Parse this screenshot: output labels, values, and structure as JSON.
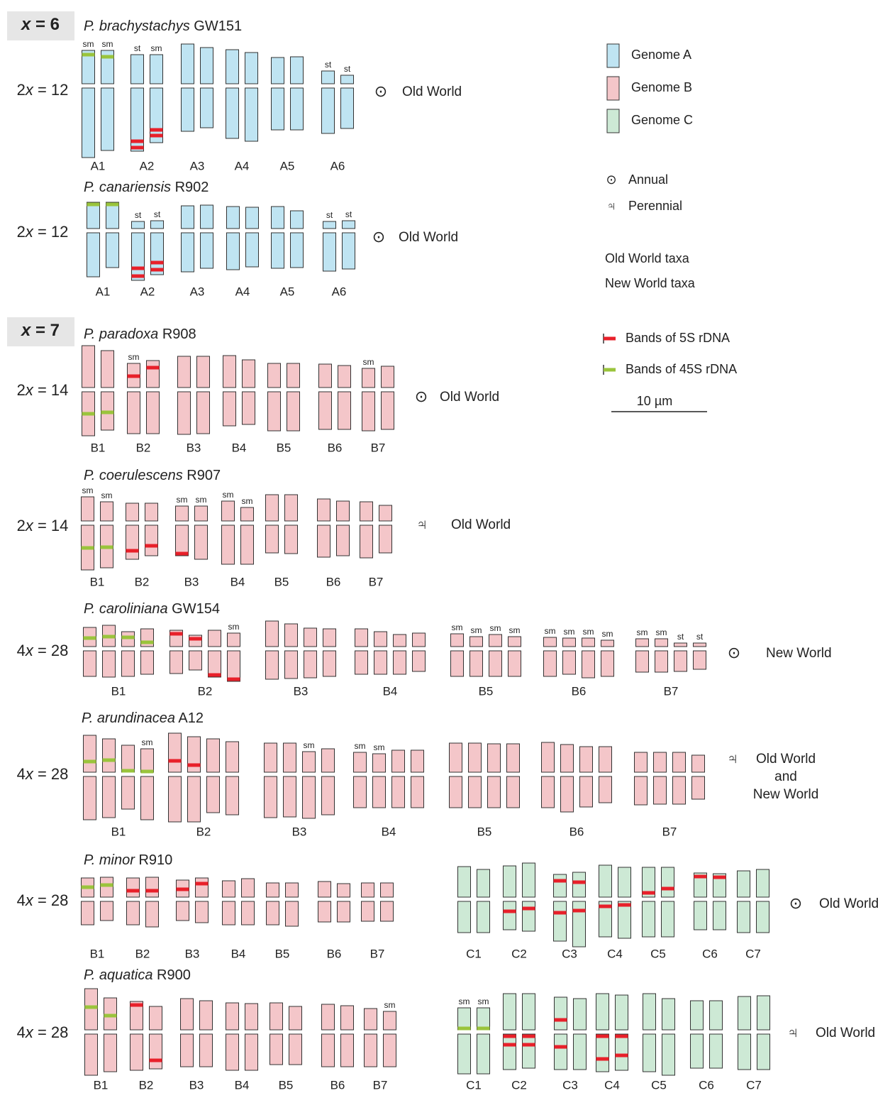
{
  "sections": [
    {
      "var": "x",
      "eq": " = 6"
    },
    {
      "var": "x",
      "eq": " = 7"
    }
  ],
  "panels": [
    {
      "species": "P. brachystachys",
      "code": " GW151",
      "ploidy": {
        "coef": "2",
        "var": "x",
        "eq": " = 12"
      },
      "life": "⊙",
      "world": [
        {
          "text": "Old World",
          "color": "#1a9ad6"
        }
      ],
      "groups": [
        {
          "label": "A1",
          "types": [
            "sm",
            "sm"
          ]
        },
        {
          "label": "A2",
          "types": [
            "st",
            "sm"
          ]
        },
        {
          "label": "A3"
        },
        {
          "label": "A4"
        },
        {
          "label": "A5"
        },
        {
          "label": "A6",
          "types": [
            "st",
            "st"
          ]
        }
      ]
    },
    {
      "species": "P. canariensis",
      "code": " R902",
      "ploidy": {
        "coef": "2",
        "var": "x",
        "eq": " = 12"
      },
      "life": "⊙",
      "world": [
        {
          "text": "Old World",
          "color": "#1a9ad6"
        }
      ],
      "groups": [
        {
          "label": "A1"
        },
        {
          "label": "A2",
          "types": [
            "st",
            "st"
          ]
        },
        {
          "label": "A3"
        },
        {
          "label": "A4"
        },
        {
          "label": "A5"
        },
        {
          "label": "A6",
          "types": [
            "st",
            "st"
          ]
        }
      ]
    },
    {
      "species": "P. paradoxa",
      "code": " R908",
      "ploidy": {
        "coef": "2",
        "var": "x",
        "eq": " = 14"
      },
      "life": "⊙",
      "world": [
        {
          "text": "Old World",
          "color": "#1a9ad6"
        }
      ],
      "groups": [
        {
          "label": "B1"
        },
        {
          "label": "B2",
          "types": [
            "sm",
            null
          ]
        },
        {
          "label": "B3"
        },
        {
          "label": "B4"
        },
        {
          "label": "B5"
        },
        {
          "label": "B6"
        },
        {
          "label": "B7",
          "types": [
            "sm",
            null
          ]
        }
      ]
    },
    {
      "species": "P. coerulescens",
      "code": " R907",
      "ploidy": {
        "coef": "2",
        "var": "x",
        "eq": " = 14"
      },
      "life": "♃",
      "world": [
        {
          "text": "Old World",
          "color": "#1a9ad6"
        }
      ],
      "groups": [
        {
          "label": "B1",
          "types": [
            "sm",
            "sm"
          ]
        },
        {
          "label": "B2"
        },
        {
          "label": "B3",
          "types": [
            "sm",
            "sm"
          ]
        },
        {
          "label": "B4",
          "types": [
            "sm",
            "sm"
          ]
        },
        {
          "label": "B5"
        },
        {
          "label": "B6"
        },
        {
          "label": "B7"
        }
      ]
    },
    {
      "species": "P. caroliniana",
      "code": " GW154",
      "ploidy": {
        "coef": "4",
        "var": "x",
        "eq": " = 28"
      },
      "life": "⊙",
      "world": [
        {
          "text": "New World",
          "color": "#e02020"
        }
      ],
      "groups": [
        {
          "label": "B1"
        },
        {
          "label": "B2",
          "types": [
            null,
            null,
            null,
            "sm"
          ]
        },
        {
          "label": "B3"
        },
        {
          "label": "B4"
        },
        {
          "label": "B5",
          "types": [
            "sm",
            "sm",
            "sm",
            "sm"
          ]
        },
        {
          "label": "B6",
          "types": [
            "sm",
            "sm",
            "sm",
            "sm"
          ]
        },
        {
          "label": "B7",
          "types": [
            "sm",
            "sm",
            "st",
            "st"
          ]
        }
      ]
    },
    {
      "species": "P. arundinacea",
      "code": " A12",
      "ploidy": {
        "coef": "4",
        "var": "x",
        "eq": " = 28"
      },
      "life": "♃",
      "world": [
        {
          "text": "Old World",
          "color": "#1a9ad6"
        },
        {
          "text": "and",
          "color": "#222222"
        },
        {
          "text": "New World",
          "color": "#e02020"
        }
      ],
      "groups": [
        {
          "label": "B1",
          "types": [
            null,
            null,
            null,
            "sm"
          ]
        },
        {
          "label": "B2"
        },
        {
          "label": "B3",
          "types": [
            null,
            null,
            "sm",
            null
          ]
        },
        {
          "label": "B4",
          "types": [
            "sm",
            "sm",
            null,
            null
          ]
        },
        {
          "label": "B5"
        },
        {
          "label": "B6"
        },
        {
          "label": "B7"
        }
      ]
    },
    {
      "species": "P. minor",
      "code": " R910",
      "ploidy": {
        "coef": "4",
        "var": "x",
        "eq": " = 28"
      },
      "life": "⊙",
      "world": [
        {
          "text": "Old World",
          "color": "#1a9ad6"
        }
      ],
      "groups": [
        {
          "label": "B1"
        },
        {
          "label": "B2"
        },
        {
          "label": "B3"
        },
        {
          "label": "B4"
        },
        {
          "label": "B5"
        },
        {
          "label": "B6"
        },
        {
          "label": "B7"
        },
        {
          "label": "C1"
        },
        {
          "label": "C2"
        },
        {
          "label": "C3"
        },
        {
          "label": "C4"
        },
        {
          "label": "C5"
        },
        {
          "label": "C6"
        },
        {
          "label": "C7"
        }
      ]
    },
    {
      "species": "P. aquatica",
      "code": " R900",
      "ploidy": {
        "coef": "4",
        "var": "x",
        "eq": " = 28"
      },
      "life": "♃",
      "world": [
        {
          "text": "Old World",
          "color": "#1a9ad6"
        }
      ],
      "groups": [
        {
          "label": "B1"
        },
        {
          "label": "B2"
        },
        {
          "label": "B3"
        },
        {
          "label": "B4"
        },
        {
          "label": "B5"
        },
        {
          "label": "B6"
        },
        {
          "label": "B7",
          "types": [
            null,
            "sm"
          ]
        },
        {
          "label": "C1",
          "types": [
            "sm",
            "sm"
          ]
        },
        {
          "label": "C2"
        },
        {
          "label": "C3"
        },
        {
          "label": "C4"
        },
        {
          "label": "C5"
        },
        {
          "label": "C6"
        },
        {
          "label": "C7"
        }
      ]
    }
  ],
  "legend": {
    "genomes": [
      {
        "text": "Genome A",
        "color": "#bfe4f2"
      },
      {
        "text": "Genome B",
        "color": "#f4c6c9"
      },
      {
        "text": "Genome C",
        "color": "#cde9d5"
      }
    ],
    "life": [
      {
        "symbol": "⊙",
        "text": "Annual"
      },
      {
        "symbol": "♃",
        "text": "Perennial"
      }
    ],
    "taxa": [
      {
        "text": "Old World taxa",
        "color": "#1a9ad6"
      },
      {
        "text": "New World taxa",
        "color": "#e02020"
      }
    ],
    "bands": [
      {
        "text": "Bands of 5S rDNA",
        "color": "#e8202a"
      },
      {
        "text": "Bands of 45S rDNA",
        "color": "#9ac43c"
      }
    ],
    "scale": "10 µm"
  }
}
